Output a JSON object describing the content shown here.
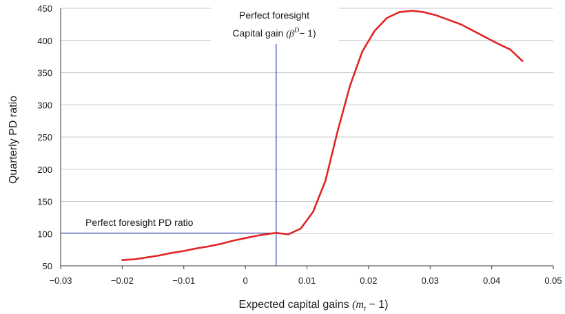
{
  "chart_data": {
    "type": "line",
    "xlabel_text": "Expected capital gains ",
    "xlabel_math": "(m",
    "xlabel_sub": "t",
    "xlabel_tail": " − 1)",
    "ylabel": "Quarterly PD ratio",
    "xlim": [
      -0.03,
      0.05
    ],
    "ylim": [
      50,
      450
    ],
    "x_ticks": [
      -0.03,
      -0.02,
      -0.01,
      0,
      0.01,
      0.02,
      0.03,
      0.04,
      0.05
    ],
    "x_tick_labels": [
      "−0.03",
      "−0.02",
      "−0.01",
      "0",
      "0.01",
      "0.02",
      "0.03",
      "0.04",
      "0.05"
    ],
    "y_ticks": [
      50,
      100,
      150,
      200,
      250,
      300,
      350,
      400,
      450
    ],
    "y_tick_labels": [
      "50",
      "100",
      "150",
      "200",
      "250",
      "300",
      "350",
      "400",
      "450"
    ],
    "grid": "horizontal",
    "colors": {
      "series": "#e02424",
      "reference": "#2a3fbf",
      "grid": "#c8c8c8"
    },
    "series": [
      {
        "x": [
          -0.02,
          -0.018,
          -0.016,
          -0.014,
          -0.012,
          -0.01,
          -0.008,
          -0.006,
          -0.004,
          -0.002,
          0.0,
          0.002,
          0.004,
          0.005,
          0.007,
          0.009,
          0.011,
          0.013,
          0.015,
          0.017,
          0.019,
          0.021,
          0.023,
          0.025,
          0.027,
          0.029,
          0.031,
          0.033,
          0.035,
          0.037,
          0.039,
          0.041,
          0.043,
          0.045
        ],
        "values": [
          59,
          60,
          63,
          66,
          70,
          73,
          77,
          80,
          84,
          89,
          93,
          97,
          100,
          101,
          99,
          108,
          134,
          182,
          260,
          330,
          383,
          415,
          435,
          444,
          446,
          444,
          439,
          432,
          425,
          415,
          405,
          395,
          386,
          368
        ]
      }
    ],
    "reference_lines": {
      "vertical_x": 0.005,
      "horizontal_y": 101
    },
    "annotations": {
      "vline_label_line1": "Perfect foresight",
      "vline_label_line2_text": "Capital gain ",
      "vline_label_line2_math": "(β",
      "vline_label_line2_sup": "D",
      "vline_label_line2_tail": "− 1)",
      "hline_label": "Perfect foresight PD ratio"
    }
  }
}
